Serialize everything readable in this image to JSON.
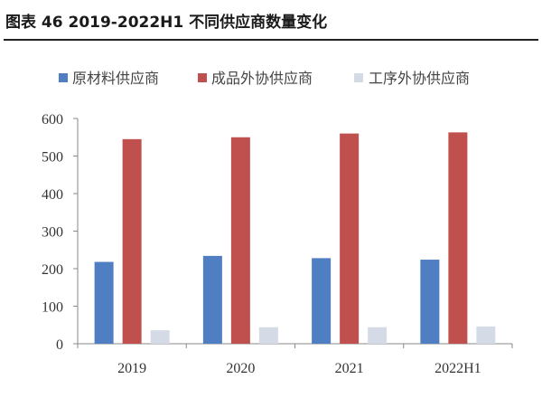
{
  "figure": {
    "title": "图表 46 2019-2022H1 不同供应商数量变化"
  },
  "chart_data": {
    "type": "bar",
    "categories": [
      "2019",
      "2020",
      "2021",
      "2022H1"
    ],
    "series": [
      {
        "name": "原材料供应商",
        "color": "#4f7fc2",
        "values": [
          218,
          234,
          228,
          224
        ]
      },
      {
        "name": "成品外协供应商",
        "color": "#c0504d",
        "values": [
          545,
          550,
          560,
          563
        ]
      },
      {
        "name": "工序外协供应商",
        "color": "#d5dbe6",
        "values": [
          36,
          44,
          44,
          46
        ]
      }
    ],
    "ylim": [
      0,
      600
    ],
    "yticks": [
      0,
      100,
      200,
      300,
      400,
      500,
      600
    ],
    "grid": false,
    "legend_position": "top"
  }
}
